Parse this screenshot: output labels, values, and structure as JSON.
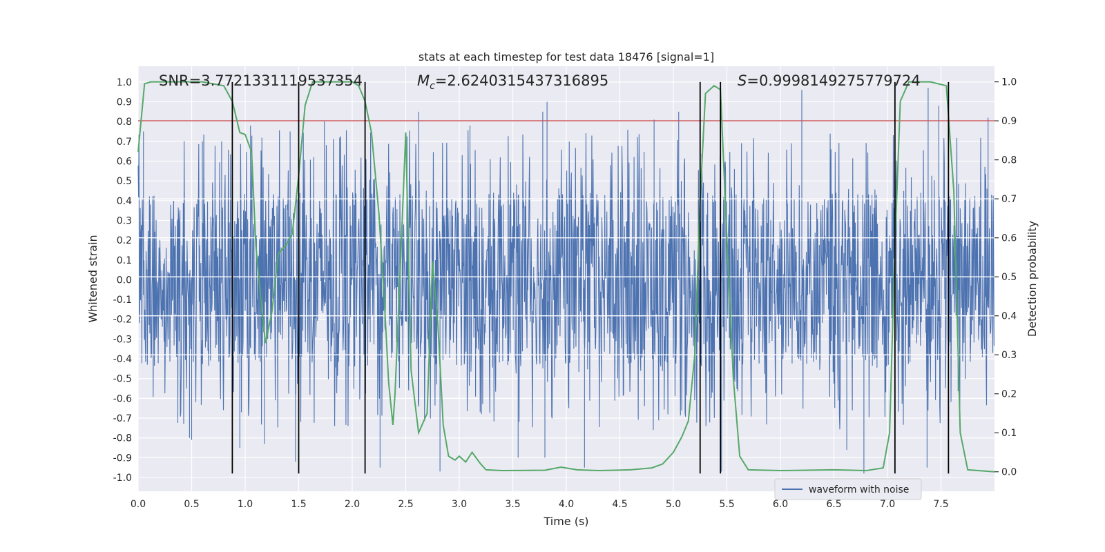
{
  "chart_data": {
    "type": "line",
    "title": "stats at each timestep for test data 18476 [signal=1]",
    "xlabel": "Time (s)",
    "ylabel_left": "Whitened strain",
    "ylabel_right": "Detection probability",
    "xlim": [
      0.0,
      8.0
    ],
    "ylim_left": [
      -1.07,
      1.08
    ],
    "ylim_right": [
      -0.05,
      1.04
    ],
    "x_ticks": [
      "0.0",
      "0.5",
      "1.0",
      "1.5",
      "2.0",
      "2.5",
      "3.0",
      "3.5",
      "4.0",
      "4.5",
      "5.0",
      "5.5",
      "6.0",
      "6.5",
      "7.0",
      "7.5"
    ],
    "y_ticks_left": [
      "-1.0",
      "-0.9",
      "-0.8",
      "-0.7",
      "-0.6",
      "-0.5",
      "-0.4",
      "-0.3",
      "-0.2",
      "-0.1",
      "0.0",
      "0.1",
      "0.2",
      "0.3",
      "0.4",
      "0.5",
      "0.6",
      "0.7",
      "0.8",
      "0.9",
      "1.0"
    ],
    "y_ticks_right": [
      "0.0",
      "0.1",
      "0.2",
      "0.3",
      "0.4",
      "0.5",
      "0.6",
      "0.7",
      "0.8",
      "0.9",
      "1.0"
    ],
    "grid": true,
    "legend": {
      "position": "bottom-right",
      "entries": [
        "waveform with noise"
      ]
    },
    "annotations": {
      "snr": "SNR=3.7721331119537354",
      "mc_symbol": "M",
      "mc_sub": "c",
      "mc_value": "=2.6240315437316895",
      "s_symbol": "S",
      "s_value": "=0.9998149275779724"
    },
    "threshold_right": 0.9,
    "vertical_lines_x": [
      0.88,
      1.5,
      2.12,
      5.25,
      5.44,
      7.07,
      7.57
    ],
    "probability_series": {
      "name": "detection probability",
      "points": [
        [
          0.0,
          0.82
        ],
        [
          0.06,
          0.995
        ],
        [
          0.12,
          1.0
        ],
        [
          0.3,
          1.0
        ],
        [
          0.6,
          1.0
        ],
        [
          0.8,
          0.99
        ],
        [
          0.88,
          0.95
        ],
        [
          0.95,
          0.87
        ],
        [
          1.0,
          0.865
        ],
        [
          1.06,
          0.82
        ],
        [
          1.1,
          0.58
        ],
        [
          1.15,
          0.43
        ],
        [
          1.19,
          0.33
        ],
        [
          1.25,
          0.41
        ],
        [
          1.31,
          0.56
        ],
        [
          1.38,
          0.58
        ],
        [
          1.44,
          0.61
        ],
        [
          1.5,
          0.76
        ],
        [
          1.56,
          0.94
        ],
        [
          1.63,
          1.0
        ],
        [
          1.8,
          1.0
        ],
        [
          2.0,
          1.0
        ],
        [
          2.06,
          0.99
        ],
        [
          2.12,
          0.95
        ],
        [
          2.18,
          0.87
        ],
        [
          2.25,
          0.66
        ],
        [
          2.3,
          0.44
        ],
        [
          2.34,
          0.23
        ],
        [
          2.38,
          0.12
        ],
        [
          2.4,
          0.2
        ],
        [
          2.45,
          0.53
        ],
        [
          2.5,
          0.87
        ],
        [
          2.55,
          0.26
        ],
        [
          2.62,
          0.1
        ],
        [
          2.7,
          0.15
        ],
        [
          2.75,
          0.54
        ],
        [
          2.8,
          0.38
        ],
        [
          2.85,
          0.12
        ],
        [
          2.9,
          0.04
        ],
        [
          2.96,
          0.03
        ],
        [
          3.0,
          0.04
        ],
        [
          3.06,
          0.025
        ],
        [
          3.12,
          0.05
        ],
        [
          3.2,
          0.02
        ],
        [
          3.25,
          0.005
        ],
        [
          3.4,
          0.003
        ],
        [
          3.8,
          0.004
        ],
        [
          3.95,
          0.012
        ],
        [
          4.1,
          0.005
        ],
        [
          4.3,
          0.003
        ],
        [
          4.6,
          0.005
        ],
        [
          4.8,
          0.01
        ],
        [
          4.9,
          0.02
        ],
        [
          5.0,
          0.05
        ],
        [
          5.08,
          0.09
        ],
        [
          5.14,
          0.13
        ],
        [
          5.2,
          0.3
        ],
        [
          5.25,
          0.7
        ],
        [
          5.3,
          0.97
        ],
        [
          5.38,
          0.99
        ],
        [
          5.44,
          0.98
        ],
        [
          5.5,
          0.6
        ],
        [
          5.56,
          0.24
        ],
        [
          5.62,
          0.04
        ],
        [
          5.7,
          0.005
        ],
        [
          6.0,
          0.003
        ],
        [
          6.5,
          0.005
        ],
        [
          6.8,
          0.003
        ],
        [
          6.96,
          0.01
        ],
        [
          7.02,
          0.1
        ],
        [
          7.07,
          0.58
        ],
        [
          7.12,
          0.95
        ],
        [
          7.2,
          1.0
        ],
        [
          7.4,
          1.0
        ],
        [
          7.55,
          0.99
        ],
        [
          7.62,
          0.72
        ],
        [
          7.68,
          0.1
        ],
        [
          7.75,
          0.005
        ],
        [
          8.0,
          0.0
        ]
      ]
    },
    "waveform_series": {
      "name": "waveform with noise",
      "sample_rate_hz": 1024,
      "typical_envelope": [
        -0.44,
        0.44
      ],
      "extreme_positive": [
        [
          0.05,
          0.75
        ],
        [
          0.6,
          0.7
        ],
        [
          0.78,
          0.7
        ],
        [
          1.05,
          0.78
        ],
        [
          1.42,
          0.75
        ],
        [
          1.74,
          0.8
        ],
        [
          2.62,
          0.85
        ],
        [
          3.1,
          0.78
        ],
        [
          3.78,
          0.85
        ],
        [
          3.82,
          0.9
        ],
        [
          4.82,
          0.81
        ],
        [
          5.05,
          0.85
        ],
        [
          6.2,
          0.96
        ],
        [
          7.38,
          0.97
        ],
        [
          7.48,
          0.88
        ],
        [
          7.94,
          0.82
        ]
      ],
      "extreme_negative": [
        [
          0.5,
          -0.81
        ],
        [
          0.48,
          -0.8
        ],
        [
          0.95,
          -0.85
        ],
        [
          1.18,
          -0.83
        ],
        [
          1.47,
          -0.92
        ],
        [
          2.26,
          -0.95
        ],
        [
          2.82,
          -0.97
        ],
        [
          3.55,
          -0.9
        ],
        [
          3.8,
          -0.9
        ],
        [
          4.17,
          -0.95
        ],
        [
          5.45,
          -0.97
        ],
        [
          6.78,
          -0.98
        ],
        [
          7.37,
          -0.95
        ],
        [
          6.62,
          -0.86
        ]
      ]
    },
    "colors": {
      "background": "#eaeaf2",
      "grid": "#ffffff",
      "waveform": "#4c72b0",
      "probability": "#55a868",
      "threshold": "#c44e52",
      "event_lines": "#000000"
    }
  }
}
